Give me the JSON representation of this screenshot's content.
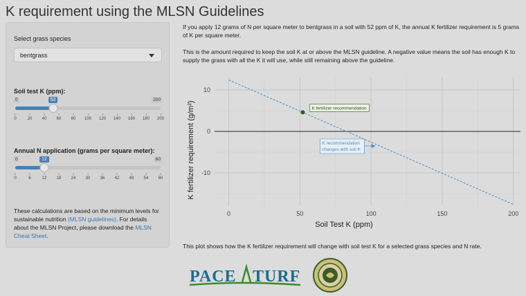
{
  "title": "K requirement using the MLSN Guidelines",
  "sidebar": {
    "species_label": "Select grass species",
    "species_value": "bentgrass",
    "soilk_label": "Soil test K (ppm):",
    "soilk": {
      "min": "0",
      "max": "200",
      "value": "52",
      "fraction": 0.26,
      "ticks": [
        "0",
        "20",
        "40",
        "60",
        "80",
        "100",
        "120",
        "140",
        "160",
        "180",
        "200"
      ]
    },
    "n_label": "Annual N application (grams per square meter):",
    "n": {
      "min": "0",
      "max": "60",
      "value": "12",
      "fraction": 0.2,
      "ticks": [
        "0",
        "6",
        "12",
        "18",
        "24",
        "30",
        "36",
        "42",
        "48",
        "54",
        "60"
      ]
    },
    "note_prefix": "These calculations are based on the minimum levels for sustainable nutrition ",
    "note_link1": "(MLSN guidelines)",
    "note_mid": ". For details about the MLSN Project, please download the ",
    "note_link2": "MLSN Cheat Sheet",
    "note_suffix": "."
  },
  "main": {
    "para1": "If you apply 12 grams of N per square meter to bentgrass in a soil with 52 ppm of K, the annual K fertilizer requirement is 5 grams of K per square meter.",
    "para2": "This is the amount required to keep the soil K at or above the MLSN guideline. A negative value means the soil has enough K to supply the grass with all the K it will use, while still remaining above the guideline.",
    "caption": "This plot shows how the K fertilizer requirement will change with soil test K for a selected grass species and N rate."
  },
  "chart_data": {
    "type": "line",
    "xlabel": "Soil Test K (ppm)",
    "ylabel": "K fertilizer requirement (g/m²)",
    "xlim": [
      -10,
      205
    ],
    "ylim": [
      -18,
      13
    ],
    "xticks": [
      0,
      50,
      100,
      150,
      200
    ],
    "yticks": [
      -10,
      0,
      10
    ],
    "grid": true,
    "line": {
      "x": [
        0,
        200
      ],
      "y": [
        12.4,
        -17.6
      ],
      "style": "dashed",
      "color": "#4a90c8"
    },
    "hline": 0,
    "point": {
      "x": 52,
      "y": 4.6,
      "color": "#2e5e1e"
    },
    "annotations": [
      {
        "text": "K fertilizer recommendation",
        "x": 52,
        "y": 4.6,
        "color": "#2e5e1e"
      },
      {
        "text": [
          "K recommendation",
          "changes with soil K"
        ],
        "x": 103,
        "y": -3.5,
        "color": "#4a90c8"
      }
    ]
  },
  "logos": {
    "brand": "PACE",
    "brand2": "TURF"
  }
}
